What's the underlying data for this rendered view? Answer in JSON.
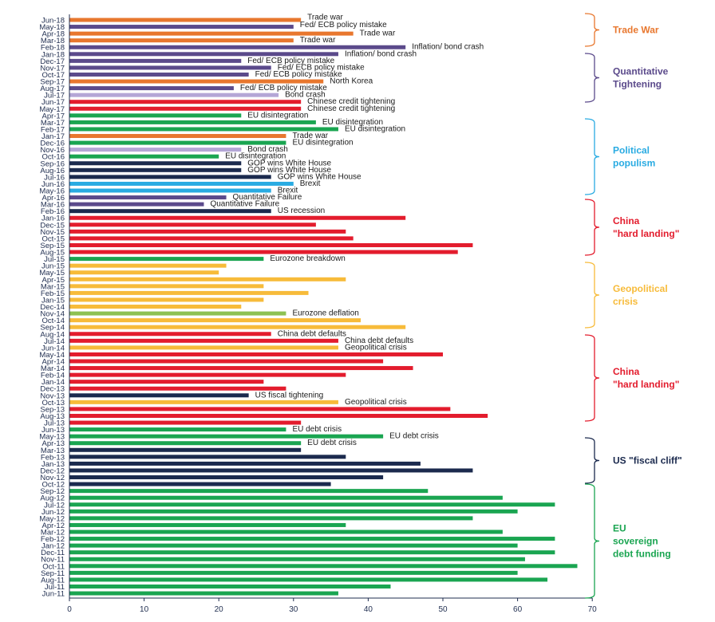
{
  "colors": {
    "Trade War": "#e8772e",
    "Quantitative Tightening": "#5b4a8b",
    "Political populism": "#29abe2",
    "China \"hard landing\"": "#e31c2d",
    "Geopolitical crisis": "#f7bb3a",
    "US \"fiscal cliff\"": "#1b2a4e",
    "EU sovereign debt funding": "#1aa551",
    "Bond crash": "#b4a6d6",
    "Eurozone deflation": "#8dc152"
  },
  "chart_data": {
    "type": "bar",
    "orientation": "horizontal",
    "title": "",
    "xlabel": "",
    "ylabel": "",
    "xlim": [
      0,
      70
    ],
    "xticks": [
      0,
      10,
      20,
      30,
      40,
      50,
      60,
      70
    ],
    "grid": false,
    "categories": [
      "Jun-18",
      "May-18",
      "Apr-18",
      "Mar-18",
      "Feb-18",
      "Jan-18",
      "Dec-17",
      "Nov-17",
      "Oct-17",
      "Sep-17",
      "Aug-17",
      "Jul-17",
      "Jun-17",
      "May-17",
      "Apr-17",
      "Mar-17",
      "Feb-17",
      "Jan-17",
      "Dec-16",
      "Nov-16",
      "Oct-16",
      "Sep-16",
      "Aug-16",
      "Jul-16",
      "Jun-16",
      "May-16",
      "Apr-16",
      "Mar-16",
      "Feb-16",
      "Jan-16",
      "Dec-15",
      "Nov-15",
      "Oct-15",
      "Sep-15",
      "Aug-15",
      "Jul-15",
      "Jun-15",
      "May-15",
      "Apr-15",
      "Mar-15",
      "Feb-15",
      "Jan-15",
      "Dec-14",
      "Nov-14",
      "Oct-14",
      "Sep-14",
      "Aug-14",
      "Jul-14",
      "Jun-14",
      "May-14",
      "Apr-14",
      "Mar-14",
      "Feb-14",
      "Jan-14",
      "Dec-13",
      "Nov-13",
      "Oct-13",
      "Sep-13",
      "Aug-13",
      "Jul-13",
      "Jun-13",
      "May-13",
      "Apr-13",
      "Mar-13",
      "Feb-13",
      "Jan-13",
      "Dec-12",
      "Nov-12",
      "Oct-12",
      "Sep-12",
      "Aug-12",
      "Jul-12",
      "Jun-12",
      "May-12",
      "Apr-12",
      "Mar-12",
      "Feb-12",
      "Jan-12",
      "Dec-11",
      "Nov-11",
      "Oct-11",
      "Sep-11",
      "Aug-11",
      "Jul-11",
      "Jun-11"
    ],
    "values": [
      31,
      30,
      38,
      30,
      45,
      36,
      23,
      27,
      24,
      34,
      22,
      28,
      31,
      31,
      23,
      33,
      36,
      29,
      29,
      23,
      20,
      23,
      23,
      27,
      30,
      27,
      21,
      18,
      27,
      45,
      33,
      37,
      38,
      54,
      52,
      26,
      21,
      20,
      37,
      26,
      32,
      26,
      23,
      29,
      39,
      45,
      27,
      36,
      36,
      50,
      42,
      46,
      37,
      26,
      29,
      24,
      36,
      51,
      56,
      31,
      29,
      42,
      31,
      31,
      37,
      47,
      54,
      42,
      35,
      48,
      58,
      65,
      60,
      54,
      37,
      58,
      65,
      60,
      65,
      61,
      68,
      60,
      64,
      43,
      36
    ],
    "bar_groups": [
      "Trade War",
      "Quantitative Tightening",
      "Trade War",
      "Trade War",
      "Quantitative Tightening",
      "Quantitative Tightening",
      "Quantitative Tightening",
      "Quantitative Tightening",
      "Quantitative Tightening",
      "Trade War",
      "Quantitative Tightening",
      "Bond crash",
      "China \"hard landing\"",
      "China \"hard landing\"",
      "EU sovereign debt funding",
      "EU sovereign debt funding",
      "EU sovereign debt funding",
      "Trade War",
      "EU sovereign debt funding",
      "Bond crash",
      "EU sovereign debt funding",
      "US \"fiscal cliff\"",
      "US \"fiscal cliff\"",
      "US \"fiscal cliff\"",
      "Political populism",
      "Political populism",
      "Quantitative Tightening",
      "Quantitative Tightening",
      "US \"fiscal cliff\"",
      "China \"hard landing\"",
      "China \"hard landing\"",
      "China \"hard landing\"",
      "China \"hard landing\"",
      "China \"hard landing\"",
      "China \"hard landing\"",
      "EU sovereign debt funding",
      "Geopolitical crisis",
      "Geopolitical crisis",
      "Geopolitical crisis",
      "Geopolitical crisis",
      "Geopolitical crisis",
      "Geopolitical crisis",
      "Geopolitical crisis",
      "Eurozone deflation",
      "Geopolitical crisis",
      "Geopolitical crisis",
      "China \"hard landing\"",
      "China \"hard landing\"",
      "Geopolitical crisis",
      "China \"hard landing\"",
      "China \"hard landing\"",
      "China \"hard landing\"",
      "China \"hard landing\"",
      "China \"hard landing\"",
      "China \"hard landing\"",
      "US \"fiscal cliff\"",
      "Geopolitical crisis",
      "China \"hard landing\"",
      "China \"hard landing\"",
      "China \"hard landing\"",
      "EU sovereign debt funding",
      "EU sovereign debt funding",
      "EU sovereign debt funding",
      "US \"fiscal cliff\"",
      "US \"fiscal cliff\"",
      "US \"fiscal cliff\"",
      "US \"fiscal cliff\"",
      "US \"fiscal cliff\"",
      "US \"fiscal cliff\"",
      "EU sovereign debt funding",
      "EU sovereign debt funding",
      "EU sovereign debt funding",
      "EU sovereign debt funding",
      "EU sovereign debt funding",
      "EU sovereign debt funding",
      "EU sovereign debt funding",
      "EU sovereign debt funding",
      "EU sovereign debt funding",
      "EU sovereign debt funding",
      "EU sovereign debt funding",
      "EU sovereign debt funding",
      "EU sovereign debt funding",
      "EU sovereign debt funding",
      "EU sovereign debt funding",
      "EU sovereign debt funding"
    ],
    "bar_labels": [
      "Trade war",
      "Fed/ ECB policy mistake",
      "Trade war",
      "Trade war",
      "Inflation/ bond crash",
      "Inflation/ bond crash",
      "Fed/ ECB policy mistake",
      "Fed/ ECB policy mistake",
      "Fed/ ECB policy mistake",
      "North Korea",
      "Fed/ ECB policy mistake",
      "Bond crash",
      "Chinese credit tightening",
      "Chinese credit tightening",
      "EU disintegration",
      "EU disintegration",
      "EU disintegration",
      "Trade war",
      "EU disintegration",
      "Bond crash",
      "EU disintegration",
      "GOP wins White House",
      "GOP wins White House",
      "GOP wins White House",
      "Brexit",
      "Brexit",
      "Quantitative Failure",
      "Quantitative Failure",
      "US recession",
      "",
      "",
      "",
      "",
      "",
      "",
      "Eurozone breakdown",
      "",
      "",
      "",
      "",
      "",
      "",
      "",
      "Eurozone deflation",
      "",
      "",
      "China debt defaults",
      "China debt defaults",
      "Geopolitical crisis",
      "",
      "",
      "",
      "",
      "",
      "",
      "US fiscal tightening",
      "Geopolitical crisis",
      "",
      "",
      "",
      "EU debt crisis",
      "EU debt crisis",
      "EU debt crisis",
      "",
      "",
      "",
      "",
      "",
      "",
      "",
      "",
      "",
      "",
      "",
      "",
      "",
      "",
      "",
      "",
      "",
      "",
      "",
      "",
      "",
      ""
    ],
    "label_dy": [
      -4,
      -3,
      -1,
      -1,
      -1,
      -1,
      -1,
      -1,
      -1,
      -1,
      -1,
      -1,
      -1,
      -1,
      -1,
      -1,
      -1,
      -1,
      -1,
      -1,
      -1,
      -1,
      -1,
      -1,
      -1,
      -1,
      -1,
      -1,
      -1,
      0,
      0,
      0,
      0,
      0,
      0,
      -1,
      0,
      0,
      0,
      0,
      0,
      0,
      0,
      -1,
      0,
      0,
      -1,
      -1,
      -1,
      0,
      0,
      0,
      0,
      0,
      0,
      -1,
      -1,
      0,
      0,
      0,
      -1,
      -1,
      -1,
      0,
      0,
      0,
      0,
      0,
      0,
      0,
      0,
      0,
      0,
      0,
      0,
      0,
      0,
      0,
      0,
      0,
      0,
      0,
      0,
      0,
      0
    ],
    "groups": [
      {
        "name": "Trade War",
        "lines": [
          "Trade War"
        ]
      },
      {
        "name": "Quantitative Tightening",
        "lines": [
          "Quantitative",
          "Tightening"
        ]
      },
      {
        "name": "Political populism",
        "lines": [
          "Political",
          "populism"
        ]
      },
      {
        "name": "China \"hard landing\"",
        "lines": [
          "China",
          "\"hard landing\""
        ]
      },
      {
        "name": "Geopolitical crisis",
        "lines": [
          "Geopolitical",
          "crisis"
        ]
      },
      {
        "name": "China \"hard landing\"",
        "lines": [
          "China",
          "\"hard landing\""
        ]
      },
      {
        "name": "US \"fiscal cliff\"",
        "lines": [
          "US \"fiscal cliff\""
        ]
      },
      {
        "name": "EU sovereign debt funding",
        "lines": [
          "EU",
          "sovereign",
          "debt funding"
        ]
      }
    ]
  }
}
